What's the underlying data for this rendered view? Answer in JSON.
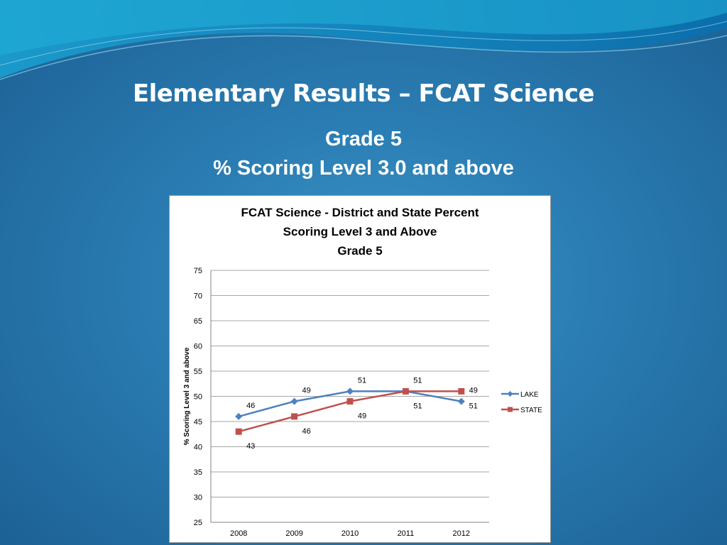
{
  "slide": {
    "title": "Elementary Results – FCAT Science",
    "subtitle_line1": "Grade 5",
    "subtitle_line2": "% Scoring Level 3.0 and above"
  },
  "chart_data": {
    "type": "line",
    "title_lines": [
      "FCAT Science - District and State Percent",
      "Scoring Level 3 and Above",
      "Grade 5"
    ],
    "xlabel": "",
    "ylabel": "% Scoring Level 3 and above",
    "categories": [
      "2008",
      "2009",
      "2010",
      "2011",
      "2012"
    ],
    "ylim": [
      25,
      75
    ],
    "yticks": [
      25,
      30,
      35,
      40,
      45,
      50,
      55,
      60,
      65,
      70,
      75
    ],
    "grid": true,
    "legend_position": "right",
    "series": [
      {
        "name": "LAKE",
        "values": [
          46,
          49,
          51,
          51,
          49
        ],
        "color": "#4f81bd",
        "marker": "diamond",
        "label_side": "above"
      },
      {
        "name": "STATE",
        "values": [
          43,
          46,
          49,
          51,
          51
        ],
        "color": "#c0504d",
        "marker": "square",
        "label_side": "below"
      }
    ]
  }
}
